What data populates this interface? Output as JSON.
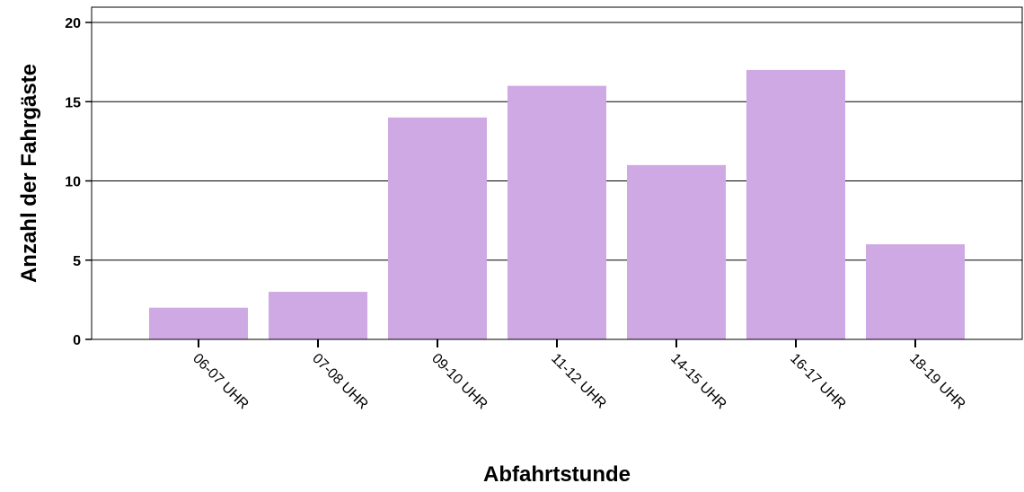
{
  "chart_data": {
    "type": "bar",
    "categories": [
      "06-07 UHR",
      "07-08 UHR",
      "09-10 UHR",
      "11-12 UHR",
      "14-15 UHR",
      "16-17 UHR",
      "18-19 UHR"
    ],
    "values": [
      2,
      3,
      14,
      16,
      11,
      17,
      6
    ],
    "xlabel": "Abfahrtstunde",
    "ylabel": "Anzahl der Fahrgäste",
    "ylim": [
      0,
      20
    ],
    "yticks": [
      0,
      5,
      10,
      15,
      20
    ],
    "grid": true,
    "colors": {
      "bar": "#CFA9E4",
      "grid": "#000000",
      "axis": "#000000"
    }
  }
}
